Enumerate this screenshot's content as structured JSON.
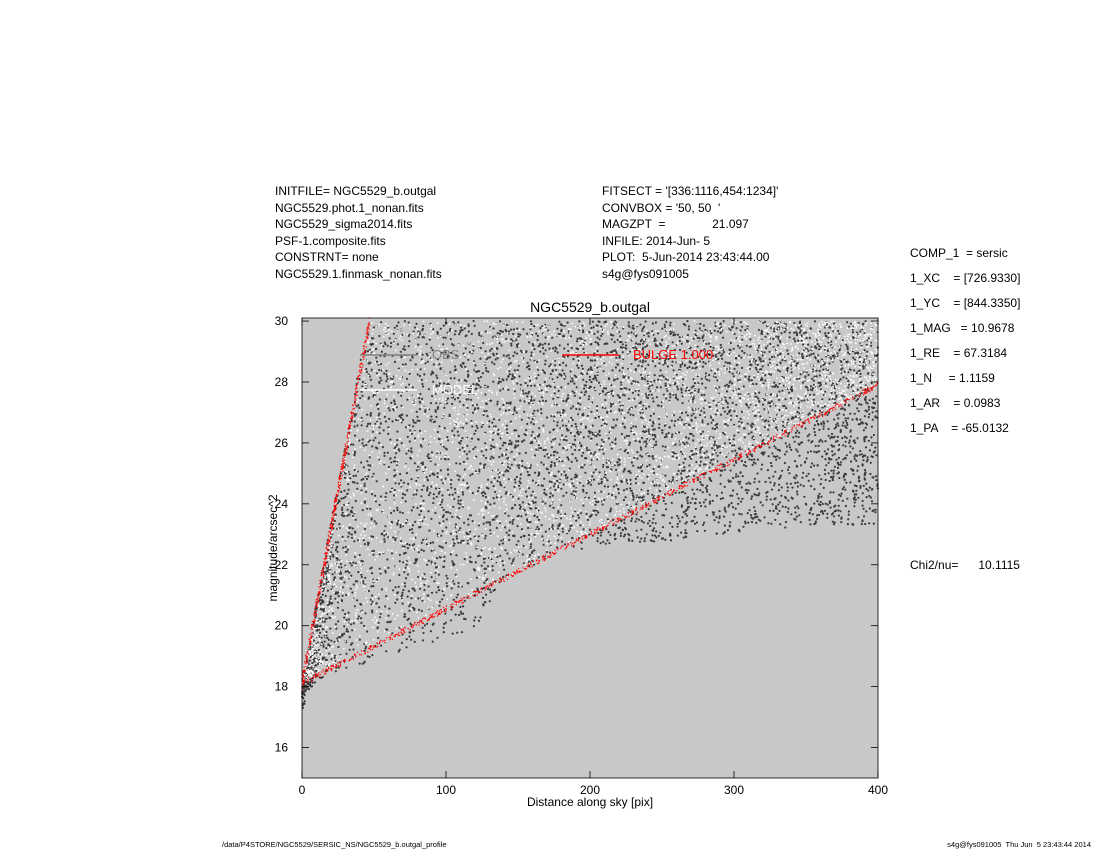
{
  "header_left": [
    "INITFILE= NGC5529_b.outgal",
    "NGC5529.phot.1_nonan.fits",
    "NGC5529_sigma2014.fits",
    "PSF-1.composite.fits",
    "CONSTRNT= none",
    "NGC5529.1.finmask_nonan.fits"
  ],
  "header_mid": [
    "FITSECT = '[336:1116,454:1234]'",
    "CONVBOX = '50, 50  '",
    "MAGZPT  =              21.097",
    "INFILE: 2014-Jun- 5",
    "PLOT:  5-Jun-2014 23:43:44.00",
    "s4g@fys091005"
  ],
  "params": [
    "COMP_1  = sersic",
    "1_XC    = [726.9330]",
    "1_YC    = [844.3350]",
    "1_MAG   = 10.9678",
    "1_RE    = 67.3184",
    "1_N     = 1.1159",
    "1_AR    = 0.0983",
    "1_PA    = -65.0132"
  ],
  "chi2": "Chi2/nu=      10.1115",
  "footer_left": "/data/P4STORE/NGC5529/SERSIC_NS/NGC5529_b.outgal_profile",
  "footer_right": "s4g@fys091005  Thu Jun  5 23:43:44 2014",
  "colors": {
    "plot_bg": "#c8c8c8",
    "obs": "#3a3a3a",
    "model": "#ffffff",
    "bulge": "#ff0000",
    "legend_obs": "#808080"
  },
  "chart_data": {
    "type": "scatter",
    "title": "NGC5529_b.outgal",
    "xlabel": "Distance along sky [pix]",
    "ylabel": "magnitude/arcsec^2",
    "xlim": [
      0,
      400
    ],
    "ylim": [
      30.1,
      15.0
    ],
    "y_inverted": true,
    "x_ticks": [
      0,
      100,
      200,
      300,
      400
    ],
    "y_ticks": [
      16,
      18,
      20,
      22,
      24,
      26,
      28,
      30
    ],
    "grid": false,
    "legend_position": "top-left",
    "legend": [
      {
        "label": "OBS",
        "color": "#808080"
      },
      {
        "label": "MODEL",
        "color": "#ffffff"
      },
      {
        "label": "BULGE  1.000",
        "color": "#ff0000"
      }
    ],
    "series": [
      {
        "name": "OBS",
        "kind": "points",
        "envelope_upper": [
          [
            0,
            17.2
          ],
          [
            5,
            17.8
          ],
          [
            10,
            18.2
          ],
          [
            30,
            18.6
          ],
          [
            60,
            18.9
          ],
          [
            100,
            19.6
          ],
          [
            120,
            19.8
          ],
          [
            140,
            21.6
          ],
          [
            200,
            22.6
          ],
          [
            260,
            22.8
          ],
          [
            320,
            23.2
          ],
          [
            400,
            23.3
          ]
        ],
        "envelope_lower": [
          [
            0,
            18.1
          ],
          [
            45,
            30.0
          ],
          [
            400,
            30.0
          ]
        ]
      },
      {
        "name": "MODEL",
        "kind": "points",
        "envelope_upper": [
          [
            0,
            18.1
          ],
          [
            400,
            27.9
          ]
        ],
        "envelope_lower": [
          [
            0,
            18.1
          ],
          [
            47,
            30.0
          ],
          [
            400,
            30.0
          ]
        ]
      },
      {
        "name": "BULGE  1.000",
        "kind": "edges",
        "upper_edge": [
          [
            0,
            18.1
          ],
          [
            400,
            27.9
          ]
        ],
        "lower_edge": [
          [
            0,
            18.1
          ],
          [
            47,
            30.0
          ]
        ]
      }
    ]
  }
}
